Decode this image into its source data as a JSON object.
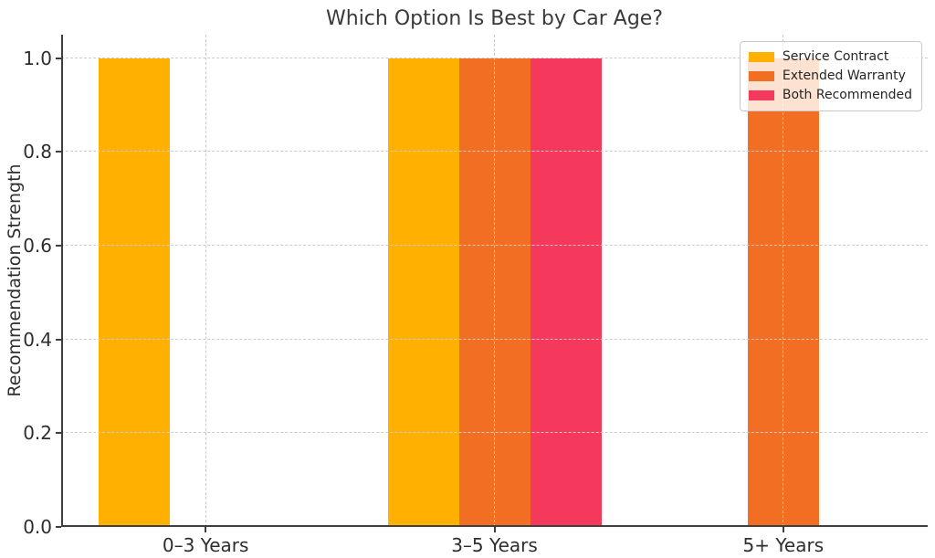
{
  "chart_data": {
    "type": "bar",
    "title": "Which Option Is Best by Car Age?",
    "xlabel": "",
    "ylabel": "Recommendation Strength",
    "categories": [
      "0–3 Years",
      "3–5 Years",
      "5+ Years"
    ],
    "series": [
      {
        "name": "Service Contract",
        "color": "#FFB000",
        "values": [
          1,
          1,
          0
        ]
      },
      {
        "name": "Extended Warranty",
        "color": "#F26E22",
        "values": [
          0,
          1,
          1
        ]
      },
      {
        "name": "Both Recommended",
        "color": "#F5395C",
        "values": [
          0,
          1,
          0
        ]
      }
    ],
    "ylim": [
      0,
      1.05
    ],
    "yticks": [
      "0.0",
      "0.2",
      "0.4",
      "0.6",
      "0.8",
      "1.0"
    ],
    "grid": true,
    "grid_style": "dashed",
    "legend_position": "upper right",
    "axis_colors": {
      "grid": "#cccccc",
      "spine": "#3f3f3f",
      "text": "#2e2e2e",
      "background": "#ffffff"
    }
  }
}
